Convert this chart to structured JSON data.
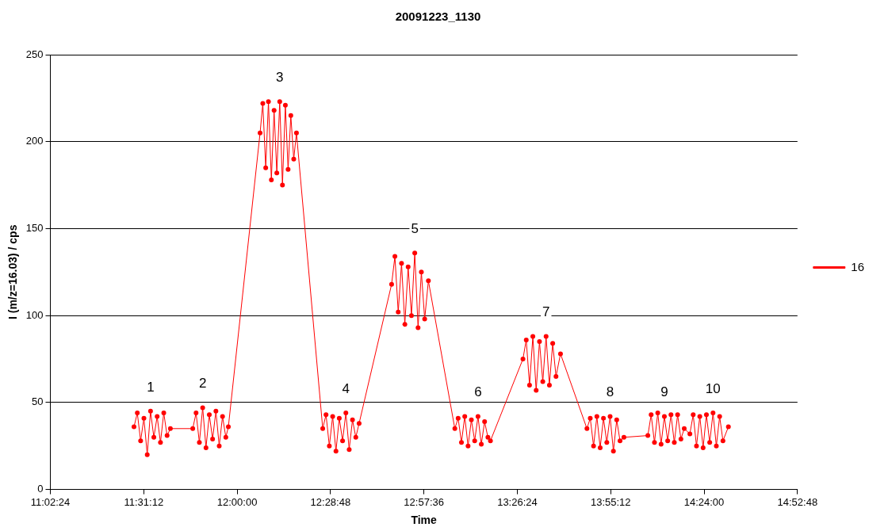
{
  "chart_data": {
    "type": "line",
    "title": "20091223_1130",
    "xlabel": "Time",
    "ylabel": "I (m/z=16.03) / cps",
    "xlim": [
      11.04,
      14.88
    ],
    "xticks": [
      {
        "value": 11.04,
        "label": "11:02:24"
      },
      {
        "value": 11.52,
        "label": "11:31:12"
      },
      {
        "value": 12.0,
        "label": "12:00:00"
      },
      {
        "value": 12.48,
        "label": "12:28:48"
      },
      {
        "value": 12.96,
        "label": "12:57:36"
      },
      {
        "value": 13.44,
        "label": "13:26:24"
      },
      {
        "value": 13.92,
        "label": "13:55:12"
      },
      {
        "value": 14.4,
        "label": "14:24:00"
      },
      {
        "value": 14.88,
        "label": "14:52:48"
      }
    ],
    "ylim": [
      0,
      250
    ],
    "yticks": [
      0,
      50,
      100,
      150,
      200,
      250
    ],
    "grid": "y",
    "legend": "right",
    "marker": "circle",
    "line_style": "solid",
    "x": [
      11.47,
      11.487,
      11.504,
      11.521,
      11.538,
      11.555,
      11.572,
      11.589,
      11.606,
      11.623,
      11.64,
      11.657,
      11.772,
      11.789,
      11.806,
      11.823,
      11.84,
      11.857,
      11.874,
      11.891,
      11.908,
      11.925,
      11.942,
      11.955,
      12.118,
      12.132,
      12.147,
      12.161,
      12.176,
      12.19,
      12.204,
      12.219,
      12.233,
      12.248,
      12.262,
      12.276,
      12.291,
      12.305,
      12.44,
      12.457,
      12.474,
      12.491,
      12.508,
      12.525,
      12.542,
      12.559,
      12.576,
      12.593,
      12.61,
      12.627,
      12.794,
      12.811,
      12.828,
      12.845,
      12.862,
      12.879,
      12.896,
      12.913,
      12.93,
      12.947,
      12.964,
      12.983,
      13.119,
      13.136,
      13.153,
      13.17,
      13.187,
      13.204,
      13.221,
      13.238,
      13.255,
      13.272,
      13.289,
      13.302,
      13.469,
      13.486,
      13.503,
      13.52,
      13.537,
      13.554,
      13.571,
      13.588,
      13.605,
      13.622,
      13.639,
      13.662,
      13.798,
      13.815,
      13.832,
      13.849,
      13.866,
      13.883,
      13.9,
      13.917,
      13.934,
      13.951,
      13.968,
      13.988,
      14.111,
      14.128,
      14.145,
      14.162,
      14.179,
      14.196,
      14.213,
      14.23,
      14.247,
      14.264,
      14.281,
      14.298,
      14.327,
      14.344,
      14.361,
      14.378,
      14.395,
      14.412,
      14.429,
      14.446,
      14.463,
      14.48,
      14.497,
      14.525
    ],
    "series": [
      {
        "name": "16",
        "color": "#ff0000",
        "values": [
          36,
          44,
          28,
          41,
          20,
          45,
          30,
          42,
          27,
          44,
          31,
          35,
          35,
          44,
          27,
          47,
          24,
          43,
          29,
          45,
          25,
          42,
          30,
          36,
          205,
          222,
          185,
          223,
          178,
          218,
          182,
          223,
          175,
          221,
          184,
          215,
          190,
          205,
          35,
          43,
          25,
          42,
          22,
          41,
          28,
          44,
          23,
          40,
          30,
          38,
          118,
          134,
          102,
          130,
          95,
          128,
          100,
          136,
          93,
          125,
          98,
          120,
          35,
          41,
          27,
          42,
          25,
          40,
          28,
          42,
          26,
          39,
          30,
          28,
          75,
          86,
          60,
          88,
          57,
          85,
          62,
          88,
          60,
          84,
          65,
          78,
          35,
          41,
          25,
          42,
          24,
          41,
          27,
          42,
          22,
          40,
          28,
          30,
          31,
          43,
          27,
          44,
          26,
          42,
          28,
          43,
          27,
          43,
          29,
          35,
          32,
          43,
          25,
          42,
          24,
          43,
          27,
          44,
          25,
          42,
          28,
          36
        ]
      }
    ],
    "annotations": [
      {
        "text": "1",
        "x": 11.555,
        "y": 45
      },
      {
        "text": "2",
        "x": 11.823,
        "y": 47
      },
      {
        "text": "3",
        "x": 12.219,
        "y": 223
      },
      {
        "text": "4",
        "x": 12.559,
        "y": 44
      },
      {
        "text": "5",
        "x": 12.913,
        "y": 136
      },
      {
        "text": "6",
        "x": 13.238,
        "y": 42
      },
      {
        "text": "7",
        "x": 13.588,
        "y": 88
      },
      {
        "text": "8",
        "x": 13.917,
        "y": 42
      },
      {
        "text": "9",
        "x": 14.196,
        "y": 42
      },
      {
        "text": "10",
        "x": 14.446,
        "y": 44
      }
    ]
  }
}
